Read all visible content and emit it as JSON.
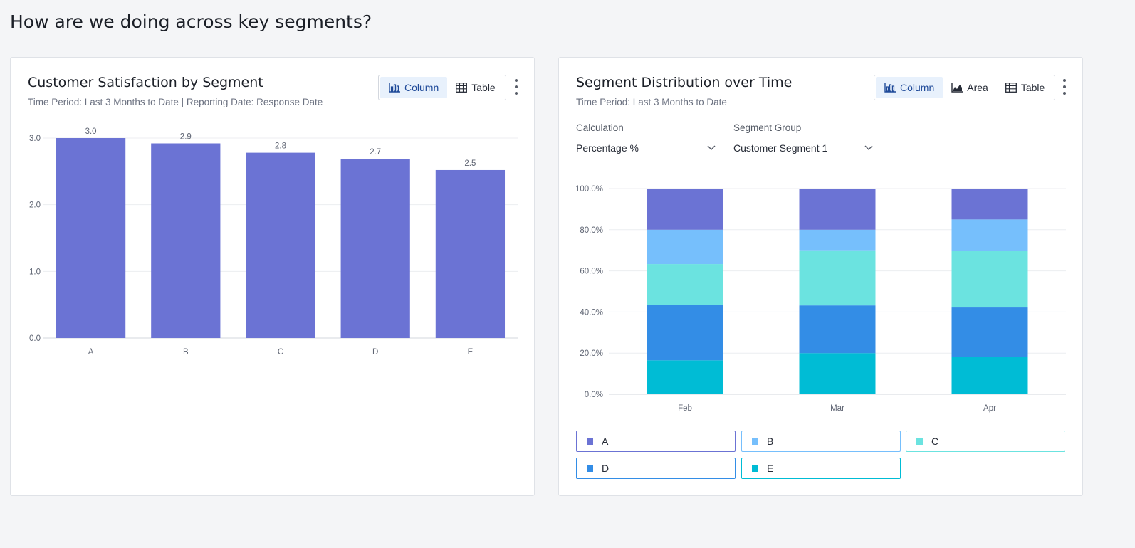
{
  "page": {
    "title": "How are we doing across key segments?"
  },
  "left_card": {
    "title": "Customer Satisfaction by Segment",
    "subtitle": "Time Period: Last 3 Months to Date | Reporting Date: Response Date",
    "toggles": [
      {
        "label": "Column",
        "icon": "bar-chart-icon",
        "active": true
      },
      {
        "label": "Table",
        "icon": "table-icon",
        "active": false
      }
    ]
  },
  "right_card": {
    "title": "Segment Distribution over Time",
    "subtitle": "Time Period: Last 3 Months to Date",
    "toggles": [
      {
        "label": "Column",
        "icon": "bar-chart-icon",
        "active": true
      },
      {
        "label": "Area",
        "icon": "area-chart-icon",
        "active": false
      },
      {
        "label": "Table",
        "icon": "table-icon",
        "active": false
      }
    ],
    "calculation": {
      "label": "Calculation",
      "value": "Percentage %"
    },
    "segment_group": {
      "label": "Segment Group",
      "value": "Customer Segment 1"
    }
  },
  "colors": {
    "A": "#6b73d4",
    "B": "#76bffc",
    "C": "#6be3e0",
    "D": "#338de6",
    "E": "#00bcd5"
  },
  "chart_data": [
    {
      "type": "bar",
      "categories": [
        "A",
        "B",
        "C",
        "D",
        "E"
      ],
      "values": [
        3.0,
        2.92,
        2.78,
        2.69,
        2.52
      ],
      "data_labels": [
        "3.0",
        "2.9",
        "2.8",
        "2.7",
        "2.5"
      ],
      "ylim": [
        0,
        3.0
      ],
      "yticks": [
        0,
        1,
        2,
        3
      ],
      "ytick_labels": [
        "0.0",
        "1.0",
        "2.0",
        "3.0"
      ],
      "title": "Customer Satisfaction by Segment",
      "xlabel": "",
      "ylabel": "",
      "grid": true,
      "color": "#6b73d4"
    },
    {
      "type": "bar",
      "stacked": true,
      "categories": [
        "Feb",
        "Mar",
        "Apr"
      ],
      "series": [
        {
          "name": "E",
          "values": [
            16.5,
            20.0,
            18.2
          ]
        },
        {
          "name": "D",
          "values": [
            26.8,
            23.2,
            24.0
          ]
        },
        {
          "name": "C",
          "values": [
            20.0,
            26.8,
            27.6
          ]
        },
        {
          "name": "B",
          "values": [
            16.7,
            10.0,
            15.2
          ]
        },
        {
          "name": "A",
          "values": [
            20.0,
            20.0,
            15.0
          ]
        }
      ],
      "ylim": [
        0,
        100
      ],
      "yticks": [
        0,
        20,
        40,
        60,
        80,
        100
      ],
      "ytick_labels": [
        "0.0%",
        "20.0%",
        "40.0%",
        "60.0%",
        "80.0%",
        "100.0%"
      ],
      "title": "Segment Distribution over Time",
      "xlabel": "",
      "ylabel": "",
      "grid": true,
      "legend": [
        "A",
        "B",
        "C",
        "D",
        "E"
      ],
      "legend_position": "bottom"
    }
  ]
}
